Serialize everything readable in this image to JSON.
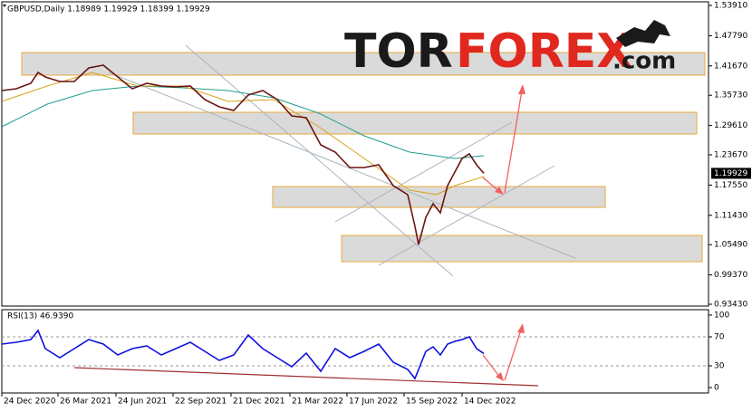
{
  "chart_data": [
    {
      "type": "line",
      "header": "GBPUSD,Daily  1.18989 1.19929 1.18399 1.19929",
      "logo": {
        "part1": "TOR",
        "part2": "FOREX",
        "part3": ".com"
      },
      "x": [
        0,
        16,
        32,
        40,
        48,
        64,
        80,
        96,
        112,
        128,
        144,
        160,
        176,
        192,
        208,
        224,
        240,
        256,
        272,
        288,
        304,
        320,
        336,
        352,
        368,
        384,
        400,
        416,
        432,
        448,
        456,
        460,
        468,
        476,
        484,
        492,
        500,
        508,
        516,
        524,
        532
      ],
      "xlim": [
        0,
        780
      ],
      "ylim": [
        0.9343,
        1.5391
      ],
      "yticks": [
        {
          "value": 1.5391,
          "label": "1.53910"
        },
        {
          "value": 1.4779,
          "label": "1.47790"
        },
        {
          "value": 1.4167,
          "label": "1.41670"
        },
        {
          "value": 1.3573,
          "label": "1.35730"
        },
        {
          "value": 1.2961,
          "label": "1.29610"
        },
        {
          "value": 1.2367,
          "label": "1.23670"
        },
        {
          "value": 1.1755,
          "label": "1.17550"
        },
        {
          "value": 1.1143,
          "label": "1.11430"
        },
        {
          "value": 1.0549,
          "label": "1.05490"
        },
        {
          "value": 0.9937,
          "label": "0.99370"
        },
        {
          "value": 0.9343,
          "label": "0.93430"
        }
      ],
      "last_price": 1.19929,
      "series": [
        {
          "color": "#6b1414",
          "values": [
            1.3668,
            1.3705,
            1.3815,
            1.4035,
            1.3943,
            1.3852,
            1.3852,
            1.4126,
            1.4181,
            1.3943,
            1.3705,
            1.3815,
            1.376,
            1.3742,
            1.376,
            1.3485,
            1.3338,
            1.3265,
            1.3577,
            1.3668,
            1.3485,
            1.3155,
            1.3118,
            1.2569,
            1.2422,
            1.2111,
            1.2111,
            1.2165,
            1.1744,
            1.1561,
            1.0919,
            1.0553,
            1.1103,
            1.1377,
            1.1194,
            1.1744,
            1.2019,
            1.2294,
            1.2385,
            1.2165,
            1.19929
          ]
        }
      ],
      "ma": [
        {
          "color": "#1f9e8f",
          "x": [
            0,
            50,
            100,
            150,
            200,
            250,
            300,
            350,
            400,
            450,
            500,
            532
          ],
          "values": [
            1.2935,
            1.3393,
            1.3668,
            1.376,
            1.3723,
            1.3668,
            1.3522,
            1.321,
            1.2752,
            1.2422,
            1.2294,
            1.2349
          ]
        },
        {
          "color": "#d9a21b",
          "x": [
            0,
            50,
            100,
            150,
            200,
            250,
            300,
            350,
            400,
            450,
            480,
            500,
            532
          ],
          "values": [
            1.3448,
            1.376,
            1.4035,
            1.376,
            1.376,
            1.3448,
            1.3485,
            1.2935,
            1.2294,
            1.1652,
            1.1561,
            1.1744,
            1.1927
          ]
        }
      ]
    },
    {
      "type": "line",
      "title": "RSI(13) 46.9390",
      "x": [
        0,
        16,
        32,
        40,
        48,
        64,
        80,
        96,
        112,
        128,
        144,
        160,
        176,
        192,
        208,
        224,
        240,
        256,
        272,
        288,
        304,
        320,
        336,
        352,
        368,
        384,
        400,
        416,
        432,
        448,
        456,
        468,
        476,
        484,
        492,
        500,
        508,
        516,
        524,
        532
      ],
      "xlim": [
        0,
        780
      ],
      "ylim": [
        0,
        100
      ],
      "yticks": [
        0,
        30,
        70,
        100
      ],
      "xticks": [
        {
          "value": 0,
          "label": "24 Dec 2020"
        },
        {
          "value": 62,
          "label": "26 Mar 2021"
        },
        {
          "value": 126,
          "label": "24 Jun 2021"
        },
        {
          "value": 189,
          "label": "22 Sep 2021"
        },
        {
          "value": 253,
          "label": "21 Dec 2021"
        },
        {
          "value": 318,
          "label": "21 Mar 2022"
        },
        {
          "value": 381,
          "label": "17 Jun 2022"
        },
        {
          "value": 444,
          "label": "15 Sep 2022"
        },
        {
          "value": 508,
          "label": "14 Dec 2022"
        }
      ],
      "series": [
        {
          "color": "#1010e0",
          "values": [
            60,
            62.5,
            66.25,
            78.75,
            53.75,
            41.25,
            53.75,
            66.25,
            60,
            45,
            53.75,
            57.5,
            45,
            53.75,
            62.5,
            50,
            37.5,
            45,
            72.5,
            53.75,
            41.25,
            28.75,
            47.5,
            22.5,
            53.75,
            41.25,
            50,
            60,
            35,
            25,
            12.5,
            50,
            56.25,
            45,
            60,
            63.75,
            66.25,
            70,
            53.75,
            46.939
          ]
        }
      ]
    }
  ]
}
